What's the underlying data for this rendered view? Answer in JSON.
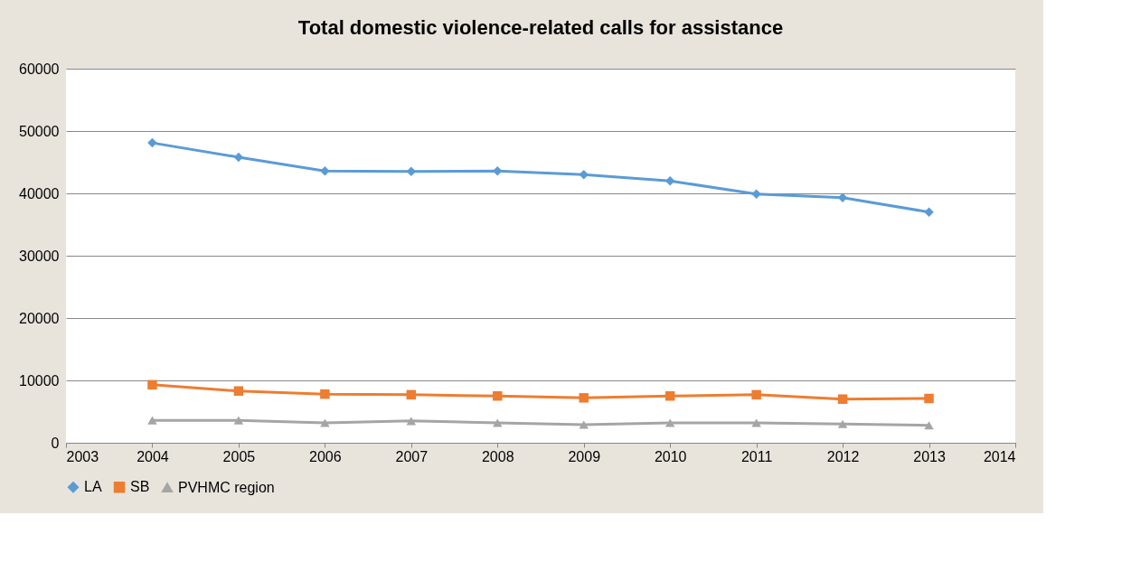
{
  "chart_data": {
    "type": "line",
    "title": "Total domestic violence-related calls for assistance",
    "x": [
      2004,
      2005,
      2006,
      2007,
      2008,
      2009,
      2010,
      2011,
      2012,
      2013
    ],
    "series": [
      {
        "name": "LA",
        "color": "#5b9bd5",
        "marker": "diamond",
        "values": [
          48100,
          45800,
          43600,
          43500,
          43600,
          43000,
          42000,
          39900,
          39300,
          37000
        ]
      },
      {
        "name": "SB",
        "color": "#ed7d31",
        "marker": "square",
        "values": [
          9300,
          8300,
          7800,
          7700,
          7500,
          7200,
          7500,
          7700,
          7000,
          7100
        ]
      },
      {
        "name": "PVHMC region",
        "color": "#a5a5a5",
        "marker": "triangle",
        "values": [
          3600,
          3600,
          3200,
          3500,
          3200,
          2900,
          3200,
          3200,
          3000,
          2800
        ]
      }
    ],
    "xlim": [
      2003,
      2014
    ],
    "xticks": [
      2003,
      2004,
      2005,
      2006,
      2007,
      2008,
      2009,
      2010,
      2011,
      2012,
      2013,
      2014
    ],
    "ylim": [
      0,
      60000
    ],
    "yticks": [
      0,
      10000,
      20000,
      30000,
      40000,
      50000,
      60000
    ],
    "grid": "y",
    "legend": "bottom",
    "line_style": "solid"
  }
}
